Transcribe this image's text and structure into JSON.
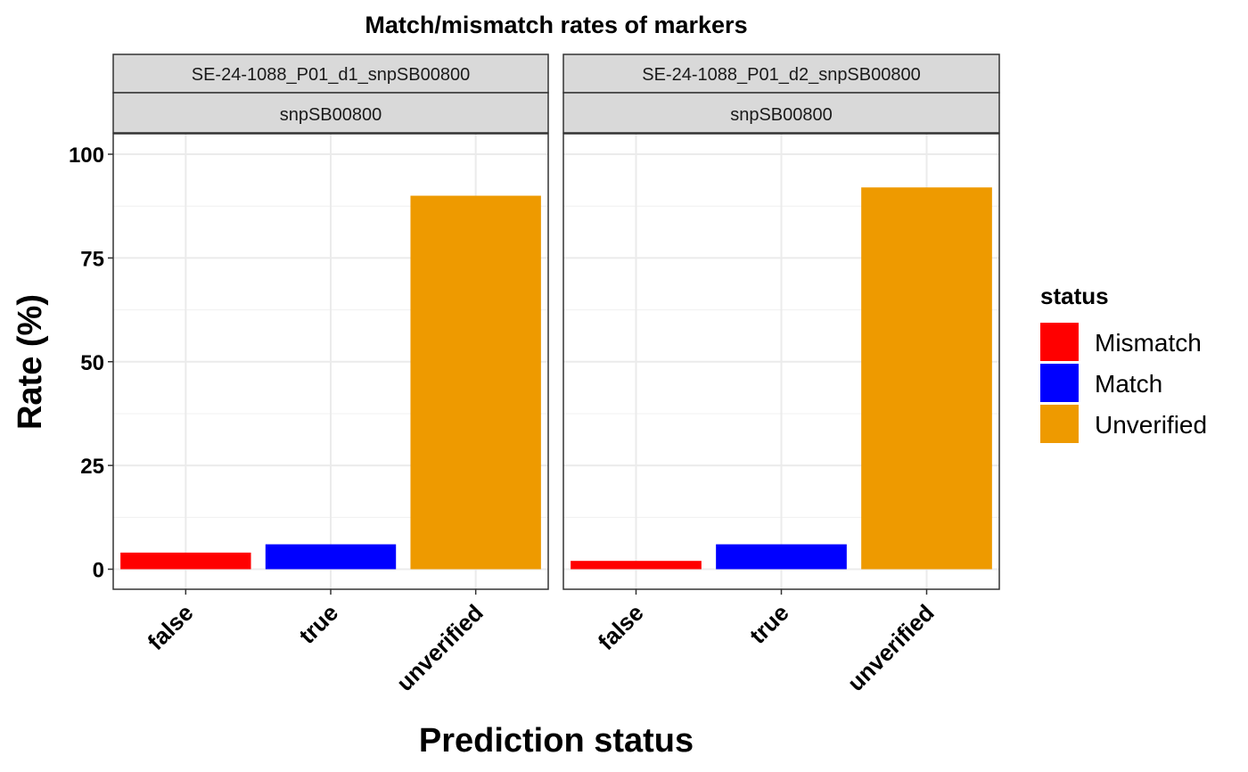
{
  "chart_data": {
    "type": "bar",
    "title": "Match/mismatch rates of markers",
    "xlabel": "Prediction status",
    "ylabel": "Rate (%)",
    "ylim": [
      -5,
      105
    ],
    "yticks": [
      0,
      25,
      50,
      75,
      100
    ],
    "categories": [
      "false",
      "true",
      "unverified"
    ],
    "grid": true,
    "legend": {
      "title": "status",
      "position": "right",
      "entries": [
        {
          "label": "Mismatch",
          "color": "#FF0000"
        },
        {
          "label": "Match",
          "color": "#0000FF"
        },
        {
          "label": "Unverified",
          "color": "#EE9A00"
        }
      ]
    },
    "panels": [
      {
        "strip_top": "SE-24-1088_P01_d1_snpSB00800",
        "strip_bottom": "snpSB00800",
        "bars": [
          {
            "category": "false",
            "value": 4,
            "status": "Mismatch"
          },
          {
            "category": "true",
            "value": 6,
            "status": "Match"
          },
          {
            "category": "unverified",
            "value": 90,
            "status": "Unverified"
          }
        ]
      },
      {
        "strip_top": "SE-24-1088_P01_d2_snpSB00800",
        "strip_bottom": "snpSB00800",
        "bars": [
          {
            "category": "false",
            "value": 2,
            "status": "Mismatch"
          },
          {
            "category": "true",
            "value": 6,
            "status": "Match"
          },
          {
            "category": "unverified",
            "value": 92,
            "status": "Unverified"
          }
        ]
      }
    ]
  }
}
